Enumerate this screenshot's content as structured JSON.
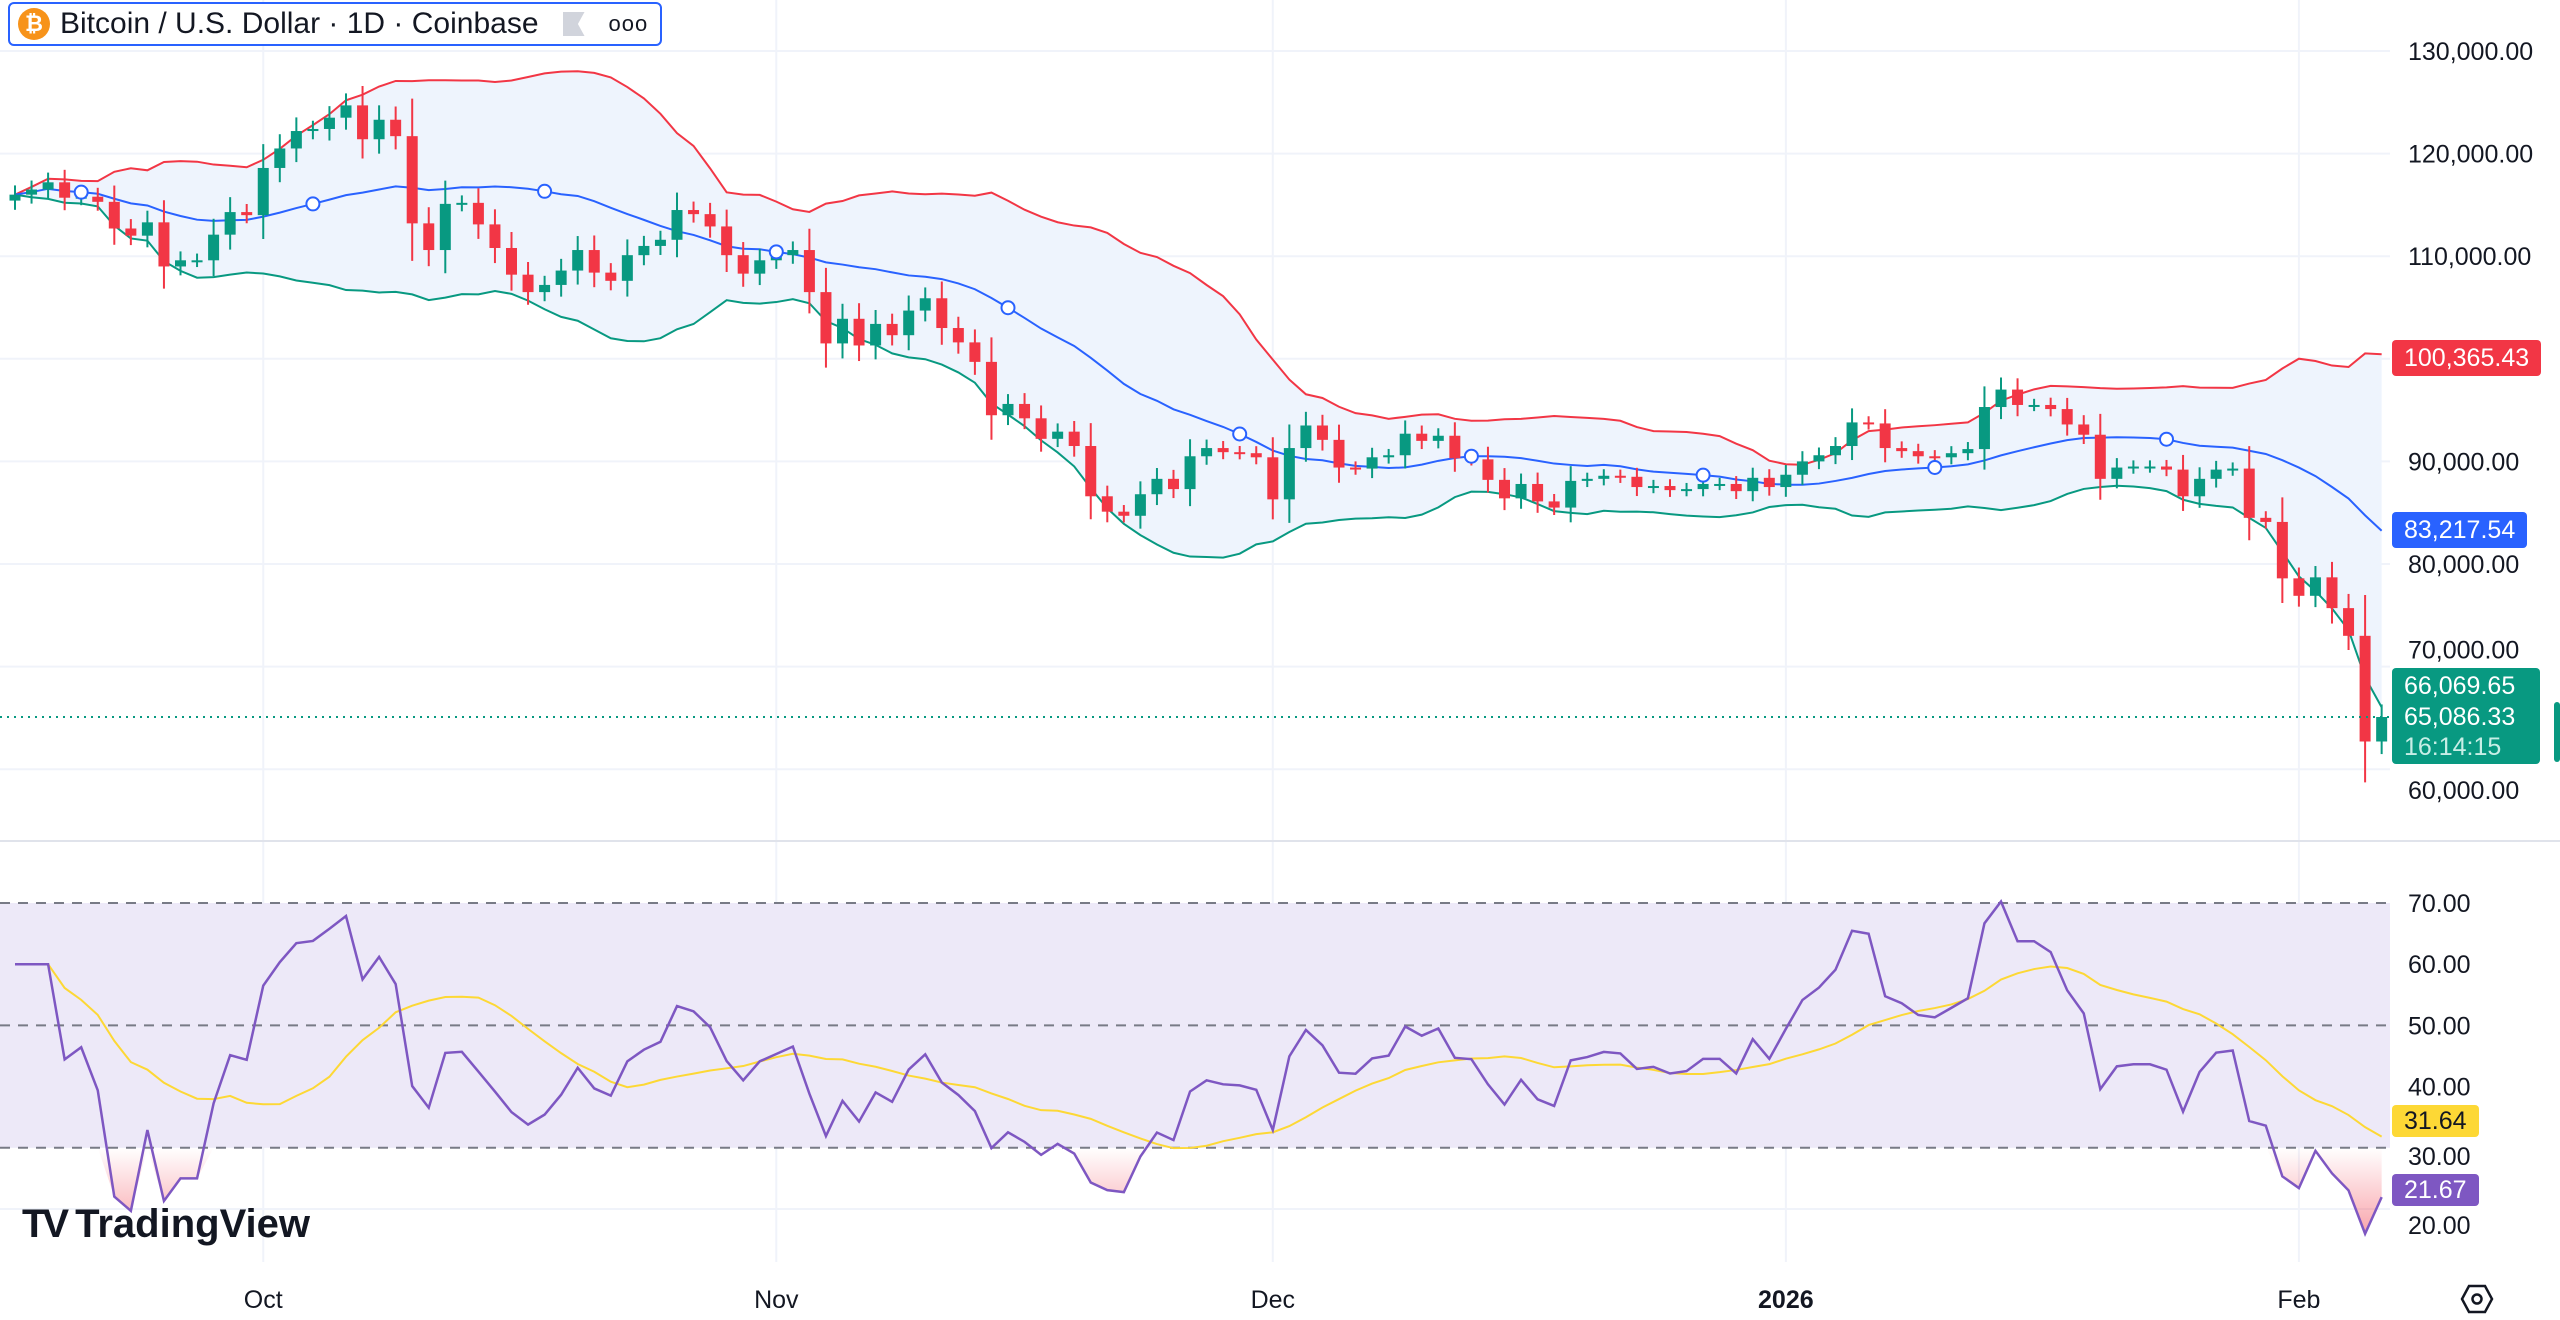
{
  "header": {
    "symbol_icon": "bitcoin-icon",
    "title": "Bitcoin / U.S. Dollar · 1D · Coinbase",
    "more_label": "ooo"
  },
  "price_axis": {
    "ticks": [
      130000,
      120000,
      110000,
      90000,
      80000,
      70000,
      60000
    ],
    "tick_labels": [
      "130,000.00",
      "120,000.00",
      "110,000.00",
      "90,000.00",
      "80,000.00",
      "70,000.00",
      "60,000.00"
    ],
    "labels": {
      "bb_upper": "100,365.43",
      "bb_basis": "83,217.54",
      "open": "66,069.65",
      "last": "65,086.33",
      "countdown": "16:14:15"
    }
  },
  "rsi_axis": {
    "ticks": [
      70,
      60,
      50,
      40,
      30,
      20
    ],
    "tick_labels": [
      "70.00",
      "60.00",
      "50.00",
      "40.00",
      "30.00",
      "20.00"
    ],
    "labels": {
      "rsi_ma": "31.64",
      "rsi": "21.67"
    }
  },
  "time_axis": {
    "labels": [
      {
        "text": "Oct",
        "date": "2025-10-01"
      },
      {
        "text": "Nov",
        "date": "2025-11-01"
      },
      {
        "text": "Dec",
        "date": "2025-12-01"
      },
      {
        "text": "2026",
        "date": "2026-01-01",
        "bold": true
      },
      {
        "text": "Feb",
        "date": "2026-02-01"
      }
    ]
  },
  "colors": {
    "up": "#089981",
    "down": "#f23645",
    "bb_upper": "#f23645",
    "bb_lower": "#089981",
    "bb_basis": "#2962ff",
    "bb_fill": "#eef4fd",
    "rsi": "#7e57c2",
    "rsi_ma": "#fdd835",
    "rsi_band": "#ede9f8",
    "legend_border": "#2962ff",
    "bitcoin": "#f7931a"
  },
  "chart_data": {
    "type": "candlestick",
    "interval": "1D",
    "first_date": "2025-09-16",
    "last_date": "2026-02-06",
    "close": [
      116000,
      116500,
      117200,
      115700,
      115800,
      115300,
      112700,
      112000,
      113300,
      109000,
      109600,
      109600,
      112100,
      114300,
      114000,
      118600,
      120500,
      122200,
      122400,
      123500,
      124700,
      121400,
      123300,
      121700,
      113200,
      110600,
      115100,
      115200,
      113100,
      110800,
      108200,
      106500,
      107200,
      108600,
      110600,
      108400,
      107600,
      110100,
      111000,
      111600,
      114500,
      114100,
      112900,
      110100,
      108300,
      109600,
      110100,
      110600,
      106500,
      101500,
      103900,
      101300,
      103400,
      102300,
      104700,
      105900,
      103000,
      101600,
      99700,
      94500,
      95600,
      94200,
      92200,
      92900,
      91500,
      86600,
      85100,
      84700,
      86800,
      88300,
      87300,
      90500,
      91300,
      90900,
      90800,
      90400,
      86300,
      91300,
      93500,
      92100,
      89400,
      89300,
      90400,
      90600,
      92700,
      92000,
      92500,
      90300,
      90200,
      88200,
      86400,
      87800,
      86100,
      85500,
      88100,
      88300,
      88600,
      88500,
      87500,
      87600,
      87200,
      87300,
      87800,
      87800,
      87100,
      88400,
      87500,
      88700,
      90000,
      90600,
      91500,
      93800,
      93700,
      91300,
      91000,
      90500,
      90400,
      90800,
      91200,
      95300,
      97000,
      95500,
      95500,
      95100,
      93600,
      92600,
      88300,
      89400,
      89500,
      89500,
      89200,
      86600,
      88300,
      89200,
      89300,
      84500,
      84100,
      78600,
      76900,
      78700,
      75700,
      73000,
      62700,
      65086.33
    ],
    "indicators": [
      "Bollinger Bands (20, 2)",
      "RSI (14) with MA"
    ],
    "price_range": [
      58000,
      133000
    ],
    "rsi_range": [
      12,
      76
    ],
    "rsi_levels": [
      70,
      50,
      30
    ],
    "event_markers_every_days": 14,
    "grid": true
  }
}
